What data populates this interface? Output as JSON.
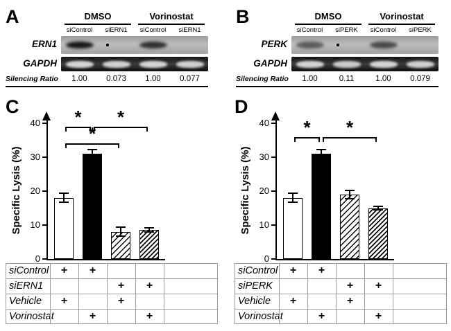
{
  "panels": {
    "a": {
      "label": "A",
      "groups": [
        "DMSO",
        "Vorinostat"
      ],
      "lanes": [
        "siControl",
        "siERN1",
        "siControl",
        "siERN1"
      ],
      "rows": [
        {
          "name": "ERN1",
          "style": "light",
          "bands": [
            0.95,
            0,
            0.8,
            0
          ],
          "speck": 1
        },
        {
          "name": "GAPDH",
          "style": "dark",
          "bands": [
            0.9,
            0.88,
            0.9,
            0.88
          ],
          "speck": 0
        }
      ],
      "ratio_label": "Silencing Ratio",
      "ratios": [
        "1.00",
        "0.073",
        "1.00",
        "0.077"
      ]
    },
    "b": {
      "label": "B",
      "groups": [
        "DMSO",
        "Vorinostat"
      ],
      "lanes": [
        "siControl",
        "siPERK",
        "siControl",
        "siPERK"
      ],
      "rows": [
        {
          "name": "PERK",
          "style": "light",
          "bands": [
            0.55,
            0,
            0.65,
            0
          ],
          "speck": 1
        },
        {
          "name": "GAPDH",
          "style": "dark",
          "bands": [
            0.9,
            0.85,
            0.9,
            0.88
          ],
          "speck": 0
        }
      ],
      "ratio_label": "Silencing Ratio",
      "ratios": [
        "1.00",
        "0.11",
        "1.00",
        "0.079"
      ]
    }
  },
  "chart_data": [
    {
      "type": "bar",
      "panel": "C",
      "title": "",
      "xlabel": "",
      "ylabel": "Specific Lysis (%)",
      "ylim": [
        0,
        40
      ],
      "yticks": [
        0,
        10,
        20,
        30,
        40
      ],
      "categories": [
        "siControl + Vehicle",
        "siControl + Vorinostat",
        "siERN1 + Vehicle",
        "siERN1 + Vorinostat"
      ],
      "values": [
        18,
        31,
        8,
        8.5
      ],
      "errors": [
        1.5,
        1.5,
        1.5,
        0.8
      ],
      "bar_fills": [
        "white",
        "black",
        "hatch",
        "hatch-dense"
      ],
      "significance": [
        {
          "from": 0,
          "to": 1,
          "y": 39,
          "label": "*"
        },
        {
          "from": 1,
          "to": 3,
          "y": 39,
          "label": "*"
        },
        {
          "from": 0,
          "to": 2,
          "y": 34,
          "label": "*"
        }
      ],
      "table": {
        "rows": [
          {
            "label": "siControl",
            "cells": [
              "+",
              "+",
              "",
              ""
            ]
          },
          {
            "label": "siERN1",
            "cells": [
              "",
              "",
              "+",
              "+"
            ]
          },
          {
            "label": "Vehicle",
            "cells": [
              "+",
              "",
              "+",
              ""
            ]
          },
          {
            "label": "Vorinostat",
            "cells": [
              "",
              "+",
              "",
              "+"
            ]
          }
        ]
      }
    },
    {
      "type": "bar",
      "panel": "D",
      "title": "",
      "xlabel": "",
      "ylabel": "Specific Lysis (%)",
      "ylim": [
        0,
        40
      ],
      "yticks": [
        0,
        10,
        20,
        30,
        40
      ],
      "categories": [
        "siControl + Vehicle",
        "siControl + Vorinostat",
        "siPERK + Vehicle",
        "siPERK + Vorinostat"
      ],
      "values": [
        18,
        31,
        19,
        15
      ],
      "errors": [
        1.5,
        1.5,
        1.5,
        0.8
      ],
      "bar_fills": [
        "white",
        "black",
        "hatch",
        "hatch-dense"
      ],
      "significance": [
        {
          "from": 0,
          "to": 1,
          "y": 36,
          "label": "*"
        },
        {
          "from": 1,
          "to": 3,
          "y": 36,
          "label": "*"
        }
      ],
      "table": {
        "rows": [
          {
            "label": "siControl",
            "cells": [
              "+",
              "+",
              "",
              ""
            ]
          },
          {
            "label": "siPERK",
            "cells": [
              "",
              "",
              "+",
              "+"
            ]
          },
          {
            "label": "Vehicle",
            "cells": [
              "+",
              "",
              "+",
              ""
            ]
          },
          {
            "label": "Vorinostat",
            "cells": [
              "",
              "+",
              "",
              "+"
            ]
          }
        ]
      }
    }
  ]
}
